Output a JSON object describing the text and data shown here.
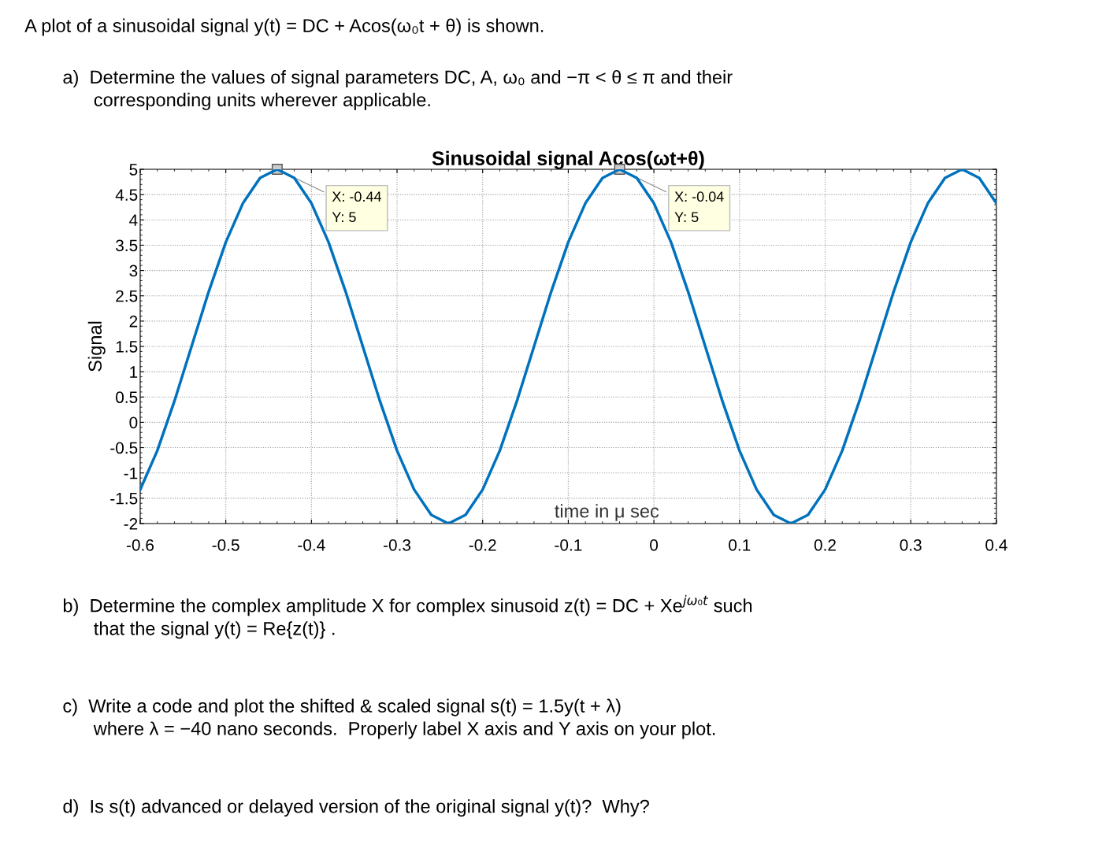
{
  "chart_data": {
    "type": "line",
    "title": "Sinusoidal signal Acos(ωt+θ)",
    "xlabel": "time in μ sec",
    "ylabel": "Signal",
    "x": [
      -0.6,
      -0.58,
      -0.56,
      -0.54,
      -0.52,
      -0.5,
      -0.48,
      -0.46,
      -0.44,
      -0.42,
      -0.4,
      -0.38,
      -0.36,
      -0.34,
      -0.32,
      -0.3,
      -0.28,
      -0.26,
      -0.24,
      -0.22,
      -0.2,
      -0.18,
      -0.16,
      -0.14,
      -0.12,
      -0.1,
      -0.08,
      -0.06,
      -0.04,
      -0.02,
      0,
      0.02,
      0.04,
      0.06,
      0.08,
      0.1,
      0.12,
      0.14,
      0.16,
      0.18,
      0.2,
      0.22,
      0.24,
      0.26,
      0.28,
      0.3,
      0.32,
      0.34,
      0.36,
      0.38,
      0.4
    ],
    "series": [
      {
        "color": "#0072bd",
        "values": [
          -1.33,
          -0.56,
          0.42,
          1.5,
          2.58,
          3.56,
          4.33,
          4.83,
          5,
          4.83,
          4.33,
          3.56,
          2.58,
          1.5,
          0.42,
          -0.56,
          -1.33,
          -1.83,
          -2,
          -1.83,
          -1.33,
          -0.56,
          0.42,
          1.5,
          2.58,
          3.56,
          4.33,
          4.83,
          5,
          4.83,
          4.33,
          3.56,
          2.58,
          1.5,
          0.42,
          -0.56,
          -1.33,
          -1.83,
          -2,
          -1.83,
          -1.33,
          -0.56,
          0.42,
          1.5,
          2.58,
          3.56,
          4.33,
          4.83,
          5,
          4.83,
          4.33
        ]
      }
    ],
    "xlim": [
      -0.6,
      0.4
    ],
    "xticks": [
      -0.6,
      -0.5,
      -0.4,
      -0.3,
      -0.2,
      -0.1,
      0,
      0.1,
      0.2,
      0.3,
      0.4
    ],
    "ylim": [
      -2,
      5
    ],
    "yticks": [
      -2,
      -1.5,
      -1,
      -0.5,
      0,
      0.5,
      1,
      1.5,
      2,
      2.5,
      3,
      3.5,
      4,
      4.5,
      5
    ],
    "grid": true,
    "line_style": "solid",
    "marker": "none",
    "annotations": [
      {
        "text": "X: -0.44\nY: 5",
        "x": -0.44,
        "y": 5
      },
      {
        "text": "X: -0.04\nY: 5",
        "x": -0.04,
        "y": 5
      },
      "A plot of a sinusoidal signal y(t) = DC + Acos(ω₀t + θ) is shown.",
      "a)  Determine the values of signal parameters DC, A, ω₀ and −π < θ ≤ π and their\n      corresponding units wherever applicable.",
      "b)  Determine the complex amplitude X for complex sinusoid z(t) = DC + Xe$^{jω₀t}$ such\n      that the signal y(t) = Re{z(t)} .",
      "c)  Write a code and plot the shifted & scaled signal s(t) = 1.5y(t + λ)\n      where λ = −40 nano seconds.  Properly label X axis and Y axis on your plot.",
      "d)  Is s(t) advanced or delayed version of the original signal y(t)?  Why?"
    ]
  }
}
